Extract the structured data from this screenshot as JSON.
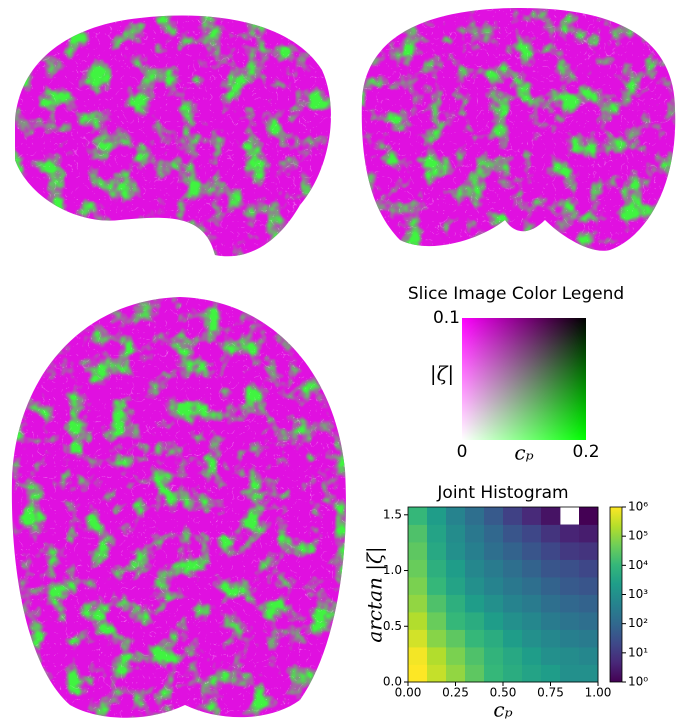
{
  "chart_data": [
    {
      "type": "colormap2d",
      "title": "Slice Image Color Legend",
      "x_label": "cₚ",
      "y_label": "|ζ|",
      "xlim": [
        0,
        0.2
      ],
      "ylim": [
        0,
        0.1
      ],
      "xticks": [
        0,
        0.2
      ],
      "yticks": [
        0.1
      ]
    },
    {
      "type": "heatmap",
      "title": "Joint Histogram",
      "x_label": "cₚ",
      "y_label": "arctan |ζ|",
      "xlim": [
        0,
        1
      ],
      "ylim": [
        0,
        1.57
      ],
      "xticks": [
        {
          "value": 0,
          "label": "0.00"
        },
        {
          "value": 0.25,
          "label": "0.25"
        },
        {
          "value": 0.5,
          "label": "0.50"
        },
        {
          "value": 0.75,
          "label": "0.75"
        },
        {
          "value": 1,
          "label": "1.00"
        }
      ],
      "yticks": [
        {
          "value": 0,
          "label": "0.0"
        },
        {
          "value": 0.5,
          "label": "0.5"
        },
        {
          "value": 1,
          "label": "1.0"
        },
        {
          "value": 1.5,
          "label": "1.5"
        }
      ],
      "values": [
        [
          1000000,
          300000,
          100000,
          30000,
          10000,
          5000,
          3000,
          2000,
          1000,
          1000
        ],
        [
          800000,
          200000,
          60000,
          20000,
          8000,
          4000,
          2000,
          1000,
          800,
          600
        ],
        [
          400000,
          80000,
          30000,
          10000,
          5000,
          2000,
          1000,
          600,
          400,
          300
        ],
        [
          200000,
          40000,
          10000,
          5000,
          2000,
          1000,
          600,
          300,
          200,
          150
        ],
        [
          100000,
          20000,
          6000,
          2000,
          1000,
          500,
          300,
          150,
          100,
          80
        ],
        [
          60000,
          10000,
          3000,
          1000,
          500,
          250,
          150,
          80,
          50,
          40
        ],
        [
          40000,
          6000,
          2000,
          600,
          300,
          150,
          80,
          40,
          30,
          20
        ],
        [
          30000,
          4000,
          1000,
          400,
          150,
          80,
          40,
          20,
          10,
          8
        ],
        [
          20000,
          3000,
          800,
          250,
          100,
          40,
          20,
          8,
          4,
          3
        ],
        [
          10000,
          2000,
          500,
          150,
          50,
          15,
          5,
          2,
          null,
          1
        ]
      ],
      "colorbar": {
        "scale": "log",
        "lim": [
          1,
          1000000
        ],
        "ticks": [
          {
            "value": 1,
            "label": "10⁰"
          },
          {
            "value": 10,
            "label": "10¹"
          },
          {
            "value": 100,
            "label": "10²"
          },
          {
            "value": 1000,
            "label": "10³"
          },
          {
            "value": 10000,
            "label": "10⁴"
          },
          {
            "value": 100000,
            "label": "10⁵"
          },
          {
            "value": 1000000,
            "label": "10⁶"
          }
        ]
      }
    }
  ]
}
